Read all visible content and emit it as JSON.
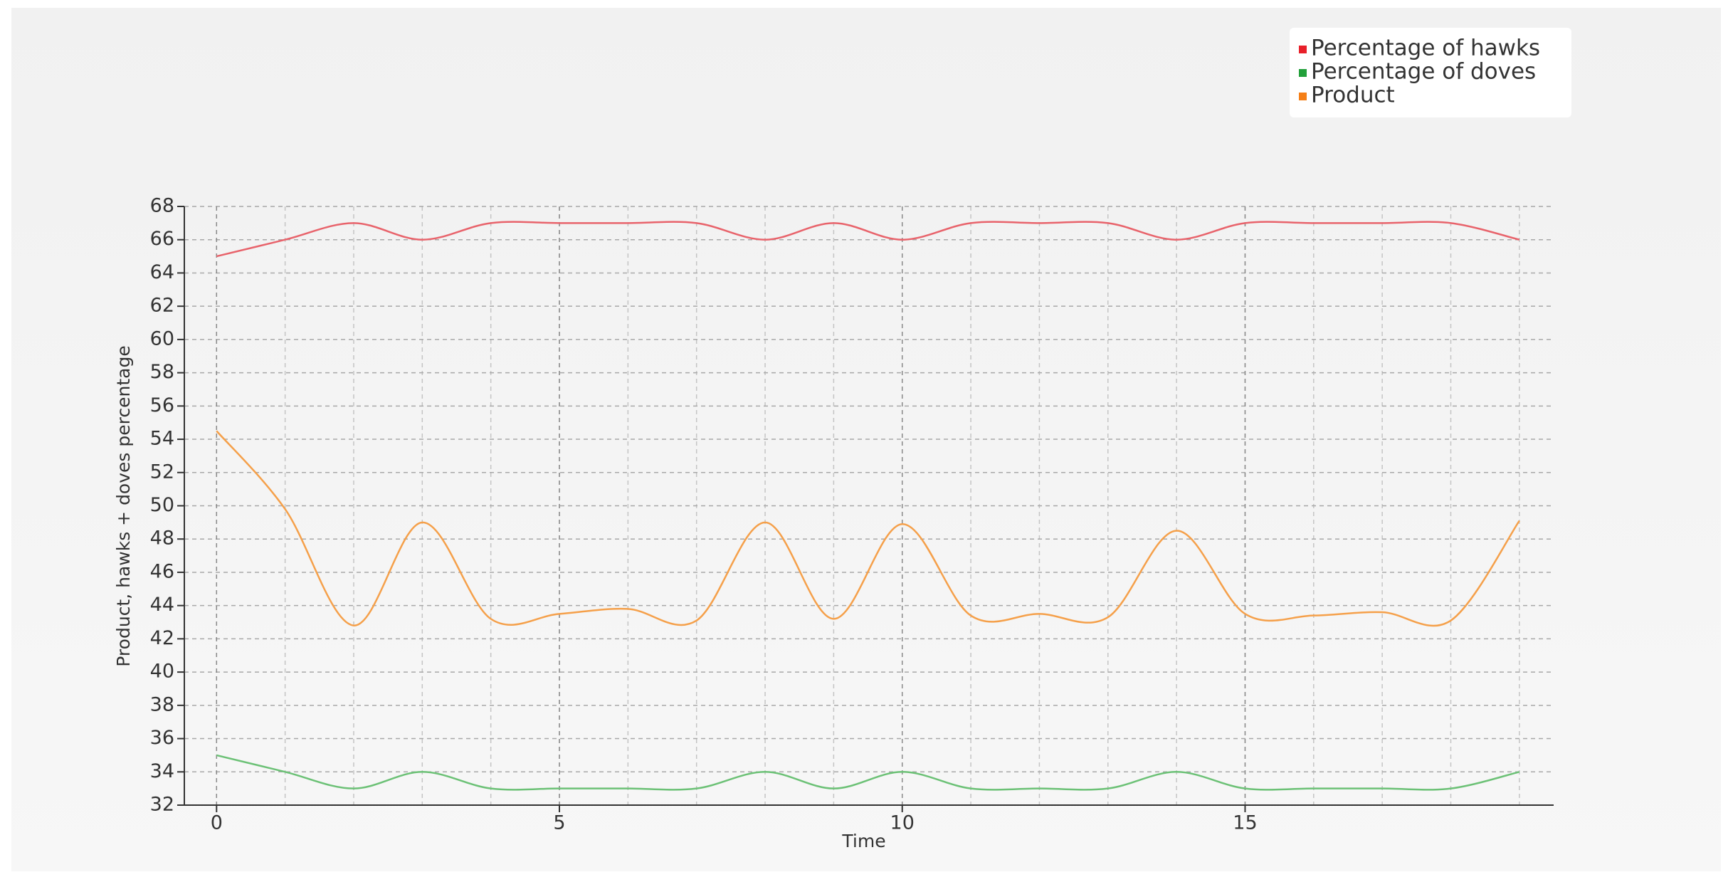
{
  "chart_data": {
    "type": "line",
    "x_label": "Time",
    "y_label": "Product, hawks + doves percentage",
    "x": [
      0,
      1,
      2,
      3,
      4,
      5,
      6,
      7,
      8,
      9,
      10,
      11,
      12,
      13,
      14,
      15,
      16,
      17,
      18,
      19
    ],
    "series": [
      {
        "name": "Percentage of hawks",
        "color": "#e8636b",
        "marker_color": "#e8202a",
        "values": [
          65,
          66,
          67,
          66,
          67,
          67,
          67,
          67,
          66,
          67,
          66,
          67,
          67,
          67,
          66,
          67,
          67,
          67,
          67,
          66
        ]
      },
      {
        "name": "Percentage of doves",
        "color": "#6cc176",
        "marker_color": "#22a03a",
        "values": [
          35,
          34,
          33,
          34,
          33,
          33,
          33,
          33,
          34,
          33,
          34,
          33,
          33,
          33,
          34,
          33,
          33,
          33,
          33,
          34
        ]
      },
      {
        "name": "Product",
        "color": "#f5a04a",
        "marker_color": "#f57f17",
        "values": [
          54.5,
          49.8,
          42.8,
          49,
          43.2,
          43.5,
          43.8,
          43.1,
          49,
          43.2,
          48.9,
          43.4,
          43.5,
          43.3,
          48.5,
          43.5,
          43.4,
          43.6,
          43.1,
          49.1
        ]
      }
    ],
    "xlim": [
      -0.47,
      19.5
    ],
    "xticks": [
      0,
      5,
      10,
      15
    ],
    "ylim": [
      32,
      68
    ],
    "yticks": [
      32,
      34,
      36,
      38,
      40,
      42,
      44,
      46,
      48,
      50,
      52,
      54,
      56,
      58,
      60,
      62,
      64,
      66,
      68
    ],
    "grid": true,
    "smooth": true,
    "legend": "top-right"
  }
}
